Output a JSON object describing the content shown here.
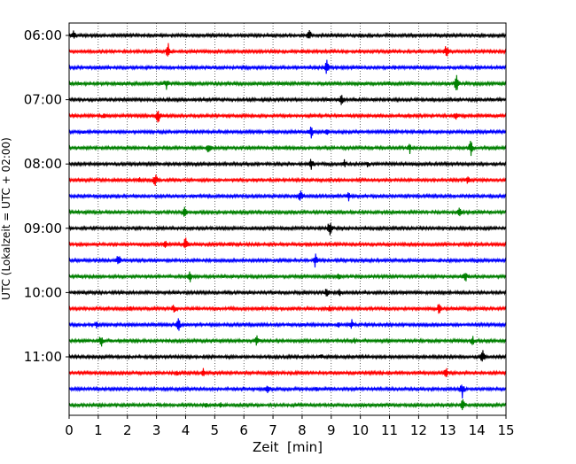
{
  "chart_data": {
    "type": "line",
    "title": "",
    "xlabel": "Zeit  [min]",
    "ylabel": "UTC (Lokalzeit = UTC + 02:00)",
    "xlim": [
      0,
      15
    ],
    "x_ticks": [
      0,
      1,
      2,
      3,
      4,
      5,
      6,
      7,
      8,
      9,
      10,
      11,
      12,
      13,
      14,
      15
    ],
    "x_tick_labels": [
      "0",
      "1",
      "2",
      "3",
      "4",
      "5",
      "6",
      "7",
      "8",
      "9",
      "10",
      "11",
      "12",
      "13",
      "14",
      "15"
    ],
    "y_tick_labels": [
      "06:00",
      "07:00",
      "08:00",
      "09:00",
      "10:00",
      "11:00"
    ],
    "grid_x": true,
    "trace_interval_min": 15,
    "series": [
      {
        "start": "06:00",
        "color": "#000000",
        "events": [
          [
            0.15,
            6
          ],
          [
            8.25,
            9
          ],
          [
            10.4,
            3
          ]
        ]
      },
      {
        "start": "06:15",
        "color": "#ff0000",
        "events": [
          [
            3.4,
            11
          ],
          [
            12.95,
            9
          ],
          [
            1.5,
            2
          ]
        ]
      },
      {
        "start": "06:30",
        "color": "#0000ff",
        "events": [
          [
            8.85,
            10
          ],
          [
            11.2,
            3
          ]
        ]
      },
      {
        "start": "06:45",
        "color": "#008000",
        "events": [
          [
            3.35,
            9
          ],
          [
            13.3,
            11
          ],
          [
            10.95,
            3
          ]
        ]
      },
      {
        "start": "07:00",
        "color": "#000000",
        "events": [
          [
            9.35,
            9
          ],
          [
            7.8,
            2
          ]
        ]
      },
      {
        "start": "07:15",
        "color": "#ff0000",
        "events": [
          [
            1.2,
            5
          ],
          [
            3.05,
            11
          ],
          [
            13.3,
            8
          ]
        ]
      },
      {
        "start": "07:30",
        "color": "#0000ff",
        "events": [
          [
            8.3,
            10
          ],
          [
            8.85,
            5
          ],
          [
            0.5,
            3
          ]
        ]
      },
      {
        "start": "07:45",
        "color": "#008000",
        "events": [
          [
            4.8,
            9
          ],
          [
            11.7,
            7
          ],
          [
            13.8,
            11
          ]
        ]
      },
      {
        "start": "08:00",
        "color": "#000000",
        "events": [
          [
            8.3,
            10
          ],
          [
            9.45,
            6
          ],
          [
            10.25,
            5
          ]
        ]
      },
      {
        "start": "08:15",
        "color": "#ff0000",
        "events": [
          [
            2.95,
            10
          ],
          [
            2.4,
            5
          ],
          [
            13.7,
            7
          ]
        ]
      },
      {
        "start": "08:30",
        "color": "#0000ff",
        "events": [
          [
            7.95,
            10
          ],
          [
            9.6,
            6
          ],
          [
            4.8,
            3
          ]
        ]
      },
      {
        "start": "08:45",
        "color": "#008000",
        "events": [
          [
            3.95,
            8
          ],
          [
            13.4,
            9
          ],
          [
            8.95,
            4
          ]
        ]
      },
      {
        "start": "09:00",
        "color": "#000000",
        "events": [
          [
            8.95,
            12
          ],
          [
            6.3,
            2
          ]
        ]
      },
      {
        "start": "09:15",
        "color": "#ff0000",
        "events": [
          [
            4.0,
            11
          ],
          [
            3.3,
            6
          ],
          [
            5.5,
            4
          ]
        ]
      },
      {
        "start": "09:30",
        "color": "#0000ff",
        "events": [
          [
            1.7,
            10
          ],
          [
            8.45,
            10
          ],
          [
            12.75,
            3
          ]
        ]
      },
      {
        "start": "09:45",
        "color": "#008000",
        "events": [
          [
            4.15,
            8
          ],
          [
            9.25,
            6
          ],
          [
            13.6,
            9
          ]
        ]
      },
      {
        "start": "10:00",
        "color": "#000000",
        "events": [
          [
            8.85,
            9
          ],
          [
            9.3,
            6
          ],
          [
            0.2,
            3
          ]
        ]
      },
      {
        "start": "10:15",
        "color": "#ff0000",
        "events": [
          [
            3.6,
            8
          ],
          [
            8.95,
            6
          ],
          [
            12.7,
            8
          ],
          [
            2.1,
            4
          ]
        ]
      },
      {
        "start": "10:30",
        "color": "#0000ff",
        "events": [
          [
            3.75,
            10
          ],
          [
            9.7,
            7
          ],
          [
            0.95,
            5
          ],
          [
            9.25,
            4
          ]
        ]
      },
      {
        "start": "10:45",
        "color": "#008000",
        "events": [
          [
            1.1,
            9
          ],
          [
            6.45,
            8
          ],
          [
            13.85,
            7
          ],
          [
            9.8,
            4
          ]
        ]
      },
      {
        "start": "11:00",
        "color": "#000000",
        "events": [
          [
            14.2,
            11
          ],
          [
            8.65,
            5
          ],
          [
            5.9,
            3
          ]
        ]
      },
      {
        "start": "11:15",
        "color": "#ff0000",
        "events": [
          [
            12.95,
            9
          ],
          [
            4.6,
            6
          ],
          [
            3.7,
            5
          ]
        ]
      },
      {
        "start": "11:30",
        "color": "#0000ff",
        "events": [
          [
            6.8,
            8
          ],
          [
            13.5,
            11
          ],
          [
            8.5,
            4
          ]
        ]
      },
      {
        "start": "11:45",
        "color": "#008000",
        "events": [
          [
            13.5,
            11
          ],
          [
            4.7,
            5
          ],
          [
            5.2,
            4
          ]
        ]
      }
    ]
  }
}
